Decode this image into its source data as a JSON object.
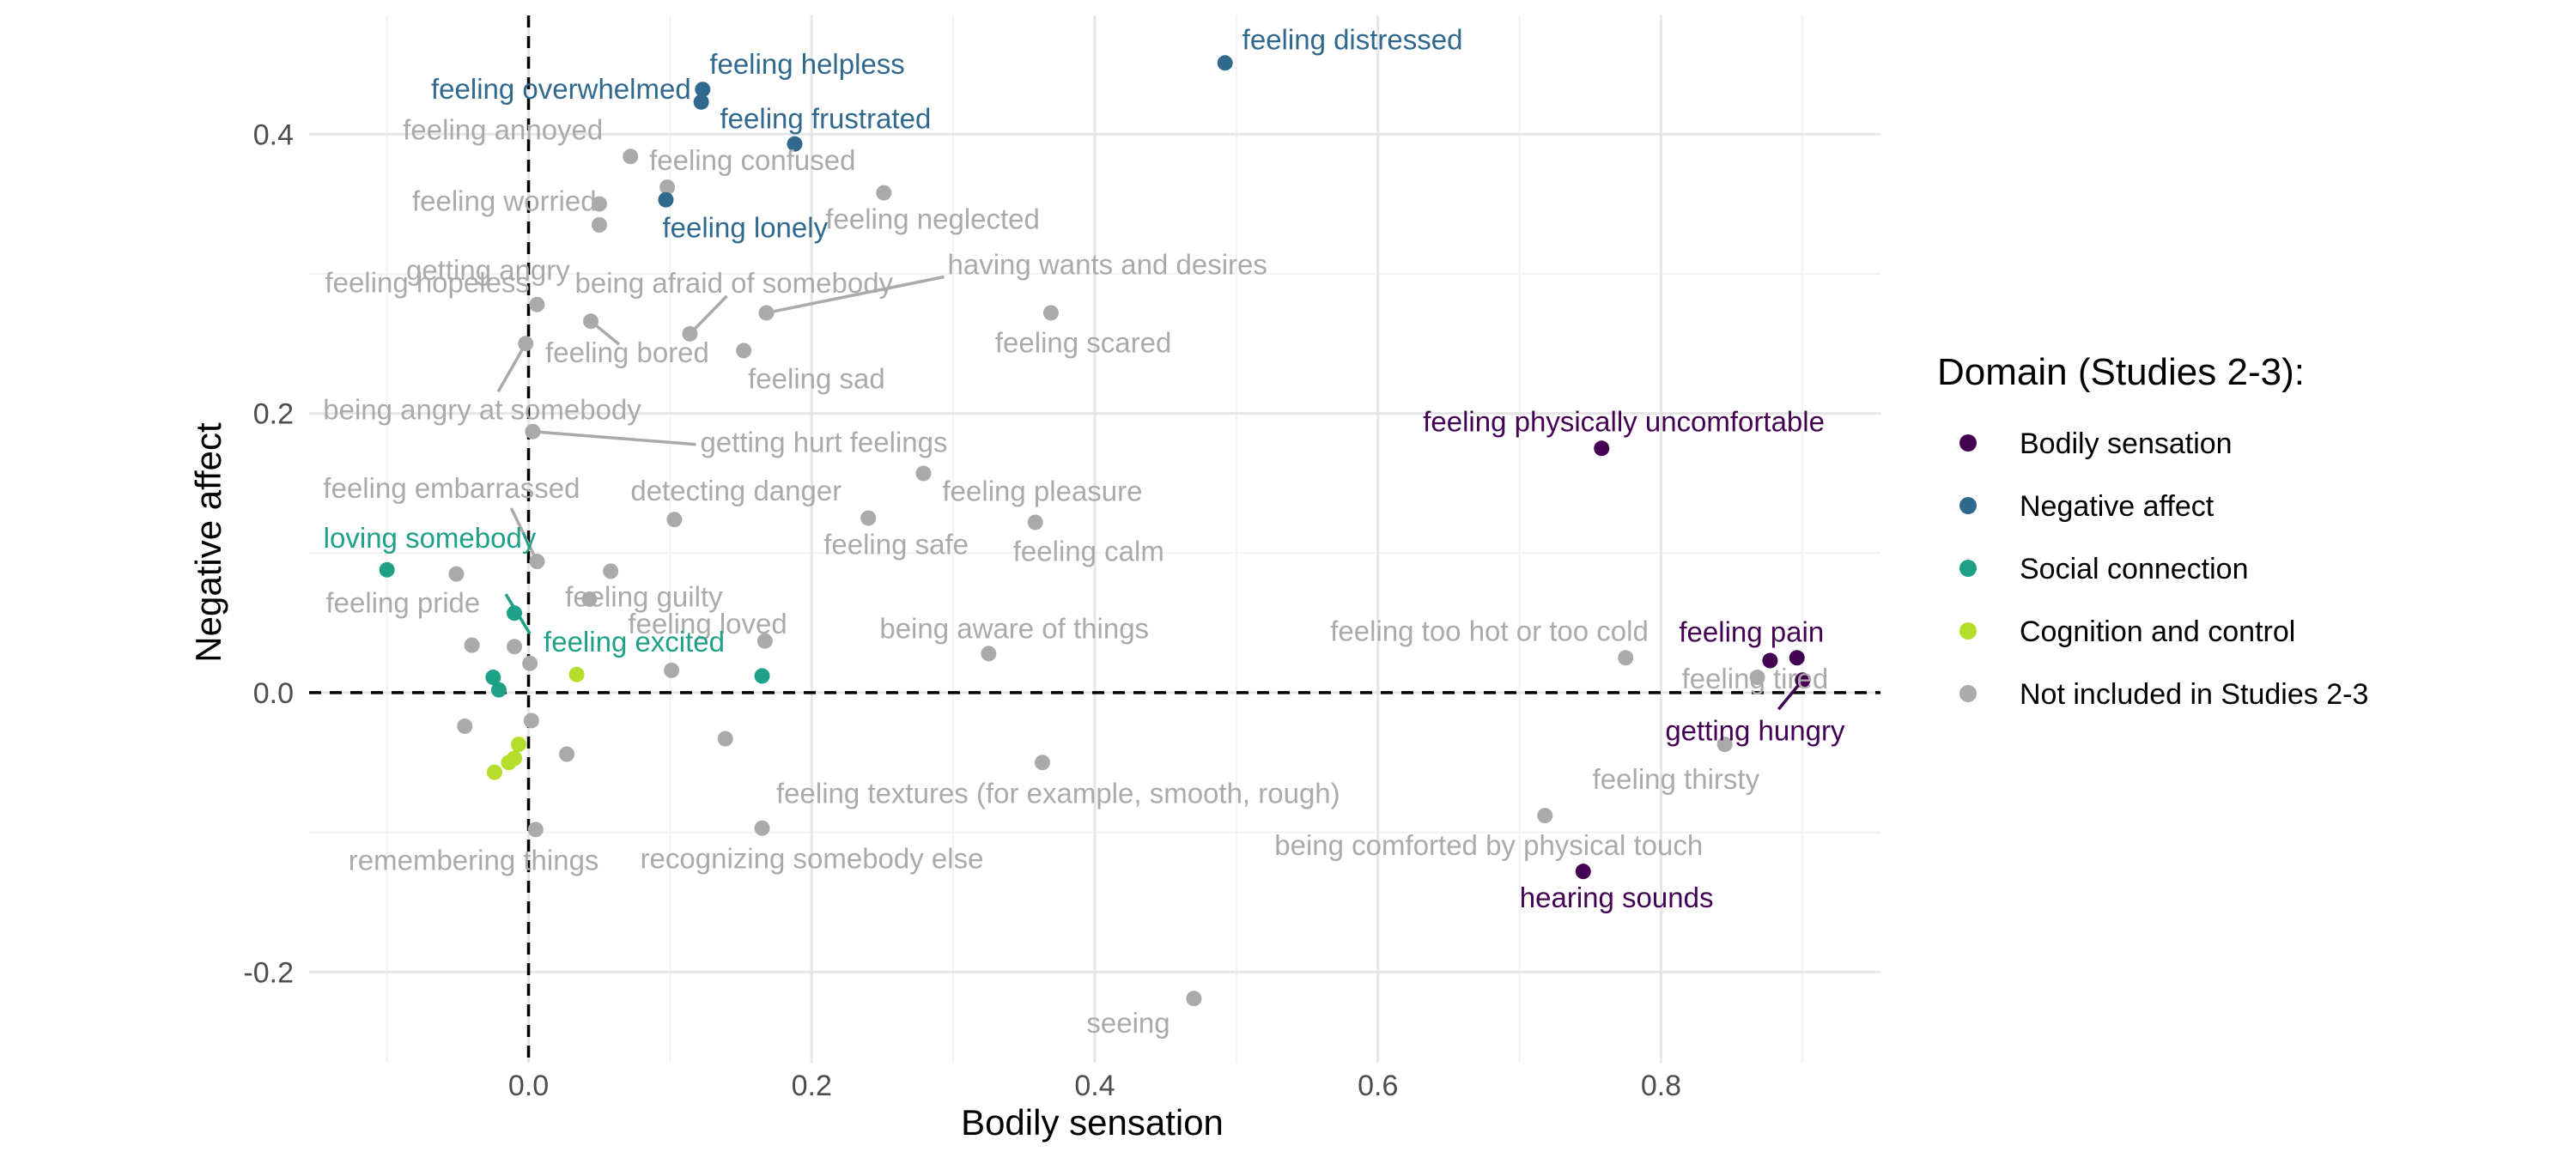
{
  "chart_data": {
    "type": "scatter",
    "xlabel": "Bodily sensation",
    "ylabel": "Negative affect",
    "xlim": [
      -0.155,
      0.955
    ],
    "ylim": [
      -0.265,
      0.485
    ],
    "x_ticks": [
      0.0,
      0.2,
      0.4,
      0.6,
      0.8
    ],
    "x_tick_labels": [
      "0.0",
      "0.2",
      "0.4",
      "0.6",
      "0.8"
    ],
    "y_ticks": [
      -0.2,
      0.0,
      0.2,
      0.4
    ],
    "y_tick_labels": [
      "-0.2",
      "0.0",
      "0.2",
      "0.4"
    ],
    "grid": true,
    "reference_lines": [
      {
        "axis": "x",
        "value": 0,
        "style": "dashed"
      },
      {
        "axis": "y",
        "value": 0,
        "style": "dashed"
      }
    ],
    "legend": {
      "title": "Domain (Studies 2-3):",
      "position": "right",
      "entries": [
        {
          "name": "Bodily sensation",
          "color": "#440154"
        },
        {
          "name": "Negative affect",
          "color": "#31688e"
        },
        {
          "name": "Social connection",
          "color": "#1fa187"
        },
        {
          "name": "Cognition and control",
          "color": "#b5de2b"
        },
        {
          "name": "Not included in Studies 2-3",
          "color": "#aaaaaa"
        }
      ]
    },
    "series": [
      {
        "name": "Bodily sensation",
        "color": "#440154",
        "points": [
          {
            "x": 0.758,
            "y": 0.175,
            "label": "feeling physically uncomfortable"
          },
          {
            "x": 0.877,
            "y": 0.023,
            "label": "feeling pain"
          },
          {
            "x": 0.896,
            "y": 0.025,
            "label": ""
          },
          {
            "x": 0.9,
            "y": 0.009,
            "label": "getting hungry"
          },
          {
            "x": 0.745,
            "y": -0.128,
            "label": "hearing sounds"
          }
        ]
      },
      {
        "name": "Negative affect",
        "color": "#31688e",
        "points": [
          {
            "x": 0.492,
            "y": 0.451,
            "label": "feeling distressed"
          },
          {
            "x": 0.123,
            "y": 0.432,
            "label": "feeling helpless"
          },
          {
            "x": 0.122,
            "y": 0.423,
            "label": "feeling overwhelmed"
          },
          {
            "x": 0.188,
            "y": 0.393,
            "label": "feeling frustrated"
          },
          {
            "x": 0.097,
            "y": 0.353,
            "label": "feeling lonely"
          }
        ]
      },
      {
        "name": "Social connection",
        "color": "#1fa187",
        "points": [
          {
            "x": -0.1,
            "y": 0.088,
            "label": "loving somebody"
          },
          {
            "x": -0.01,
            "y": 0.057,
            "label": "feeling excited"
          },
          {
            "x": -0.025,
            "y": 0.011,
            "label": ""
          },
          {
            "x": -0.021,
            "y": 0.002,
            "label": ""
          },
          {
            "x": 0.165,
            "y": 0.012,
            "label": ""
          }
        ]
      },
      {
        "name": "Cognition and control",
        "color": "#b5de2b",
        "points": [
          {
            "x": 0.034,
            "y": 0.013,
            "label": ""
          },
          {
            "x": -0.007,
            "y": -0.037,
            "label": ""
          },
          {
            "x": -0.01,
            "y": -0.047,
            "label": ""
          },
          {
            "x": -0.014,
            "y": -0.05,
            "label": ""
          },
          {
            "x": -0.024,
            "y": -0.057,
            "label": ""
          }
        ]
      },
      {
        "name": "Not included in Studies 2-3",
        "color": "#aaaaaa",
        "points": [
          {
            "x": 0.072,
            "y": 0.384,
            "label": "feeling annoyed"
          },
          {
            "x": 0.05,
            "y": 0.35,
            "label": "feeling worried"
          },
          {
            "x": 0.098,
            "y": 0.362,
            "label": "feeling confused"
          },
          {
            "x": 0.251,
            "y": 0.358,
            "label": "feeling neglected"
          },
          {
            "x": 0.05,
            "y": 0.335,
            "label": "getting angry"
          },
          {
            "x": 0.006,
            "y": 0.278,
            "label": "feeling hopeless"
          },
          {
            "x": 0.114,
            "y": 0.257,
            "label": "being afraid of somebody"
          },
          {
            "x": 0.168,
            "y": 0.272,
            "label": "having wants and desires"
          },
          {
            "x": 0.369,
            "y": 0.272,
            "label": "feeling scared"
          },
          {
            "x": 0.044,
            "y": 0.266,
            "label": "feeling bored"
          },
          {
            "x": 0.152,
            "y": 0.245,
            "label": "feeling sad"
          },
          {
            "x": -0.002,
            "y": 0.25,
            "label": "being angry at somebody"
          },
          {
            "x": 0.003,
            "y": 0.187,
            "label": "getting hurt feelings"
          },
          {
            "x": 0.279,
            "y": 0.157,
            "label": "feeling pleasure"
          },
          {
            "x": 0.103,
            "y": 0.124,
            "label": "detecting danger"
          },
          {
            "x": 0.24,
            "y": 0.125,
            "label": "feeling safe"
          },
          {
            "x": 0.358,
            "y": 0.122,
            "label": "feeling calm"
          },
          {
            "x": 0.006,
            "y": 0.094,
            "label": "feeling embarrassed"
          },
          {
            "x": 0.058,
            "y": 0.087,
            "label": "feeling guilty"
          },
          {
            "x": -0.051,
            "y": 0.085,
            "label": "feeling pride"
          },
          {
            "x": 0.043,
            "y": 0.067,
            "label": "feeling loved"
          },
          {
            "x": -0.04,
            "y": 0.034,
            "label": ""
          },
          {
            "x": -0.01,
            "y": 0.033,
            "label": ""
          },
          {
            "x": 0.167,
            "y": 0.037,
            "label": ""
          },
          {
            "x": 0.001,
            "y": 0.021,
            "label": ""
          },
          {
            "x": 0.101,
            "y": 0.016,
            "label": ""
          },
          {
            "x": 0.325,
            "y": 0.028,
            "label": "being aware of things"
          },
          {
            "x": 0.775,
            "y": 0.025,
            "label": "feeling too hot or too cold"
          },
          {
            "x": 0.868,
            "y": 0.011,
            "label": "feeling tired"
          },
          {
            "x": 0.845,
            "y": -0.037,
            "label": "feeling thirsty"
          },
          {
            "x": -0.045,
            "y": -0.024,
            "label": ""
          },
          {
            "x": 0.002,
            "y": -0.02,
            "label": ""
          },
          {
            "x": 0.139,
            "y": -0.033,
            "label": ""
          },
          {
            "x": 0.027,
            "y": -0.044,
            "label": ""
          },
          {
            "x": 0.363,
            "y": -0.05,
            "label": "feeling textures (for example, smooth, rough)"
          },
          {
            "x": 0.718,
            "y": -0.088,
            "label": "being comforted by physical touch"
          },
          {
            "x": 0.005,
            "y": -0.098,
            "label": "remembering things"
          },
          {
            "x": 0.165,
            "y": -0.097,
            "label": "recognizing somebody else"
          },
          {
            "x": 0.47,
            "y": -0.219,
            "label": "seeing"
          }
        ]
      }
    ]
  }
}
